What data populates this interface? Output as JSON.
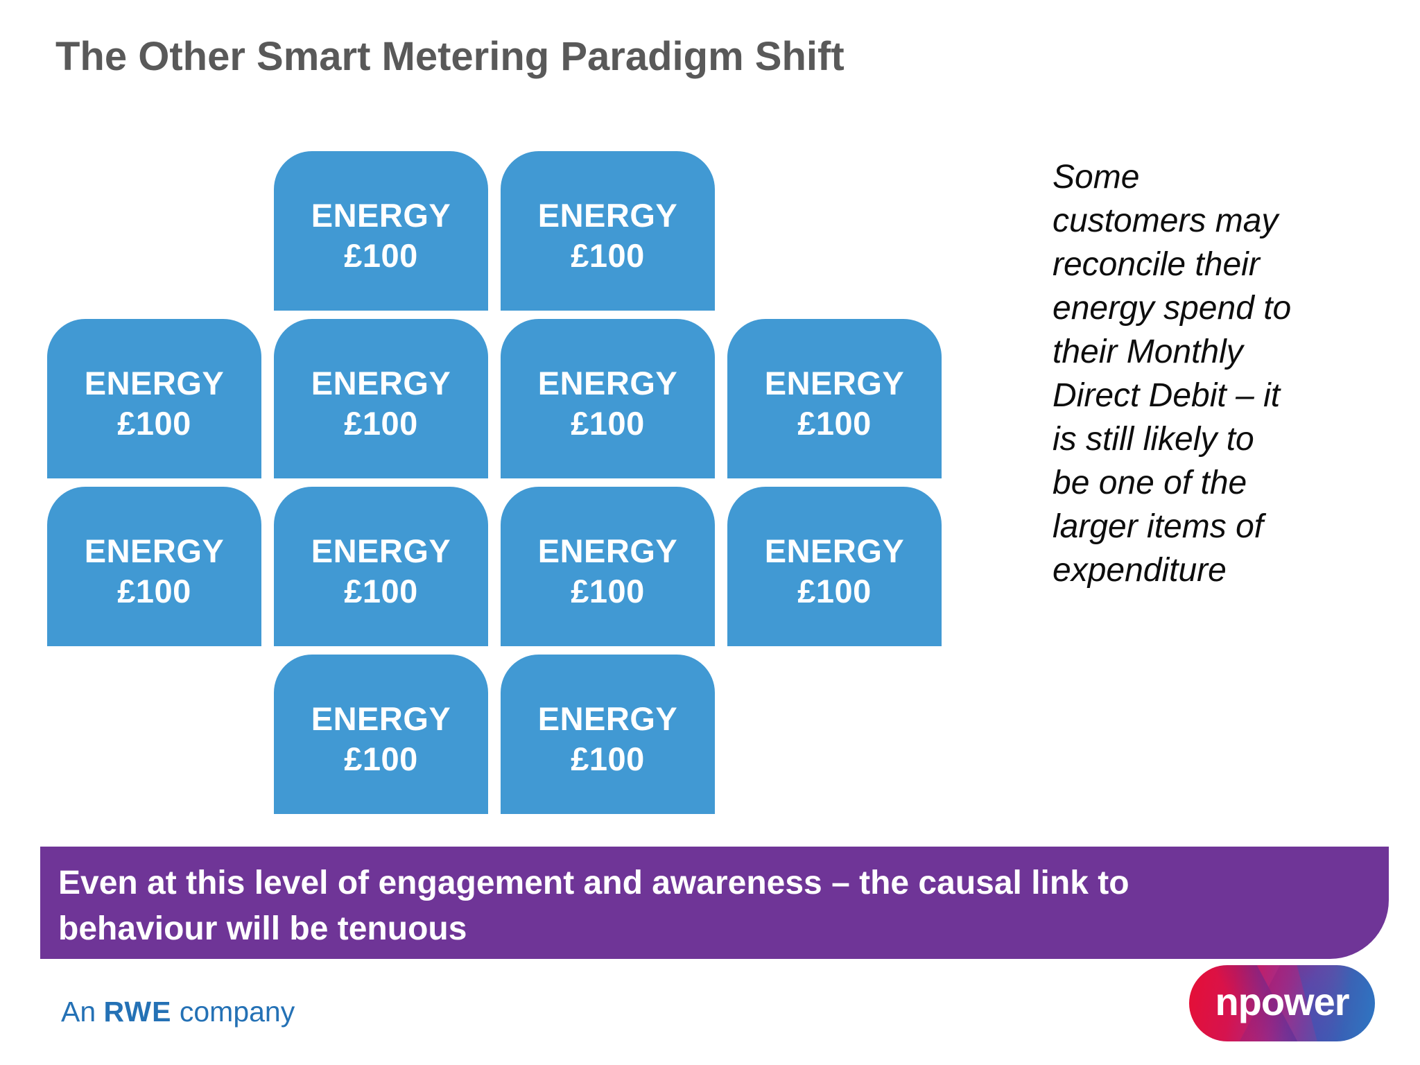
{
  "title": "The Other Smart Metering Paradigm Shift",
  "tiles": {
    "label_line1": "ENERGY",
    "label_line2": "£100",
    "cells": [
      {
        "row": 1,
        "col": 2
      },
      {
        "row": 1,
        "col": 3
      },
      {
        "row": 2,
        "col": 1
      },
      {
        "row": 2,
        "col": 2
      },
      {
        "row": 2,
        "col": 3
      },
      {
        "row": 2,
        "col": 4
      },
      {
        "row": 3,
        "col": 1
      },
      {
        "row": 3,
        "col": 2
      },
      {
        "row": 3,
        "col": 3
      },
      {
        "row": 3,
        "col": 4
      },
      {
        "row": 4,
        "col": 2
      },
      {
        "row": 4,
        "col": 3
      }
    ]
  },
  "side_note": "Some\ncustomers may\nreconcile their\nenergy spend to\ntheir Monthly\nDirect Debit – it\nis still likely to\nbe one of the\nlarger items of\nexpenditure",
  "banner": {
    "text": "Even at this level of engagement and awareness – the causal link to\nbehaviour will be tenuous"
  },
  "footer": {
    "prefix": "An ",
    "brand": "RWE",
    "suffix": " company"
  },
  "logo": {
    "text": "npower"
  },
  "colors": {
    "tile_blue": "#4199d3",
    "banner_purple": "#6f3597",
    "title_gray": "#595959",
    "rwe_blue": "#2471b5",
    "logo_red": "#e60f35",
    "logo_magenta": "#a92a84",
    "logo_purple": "#74409f",
    "logo_blue": "#2d77c4"
  }
}
